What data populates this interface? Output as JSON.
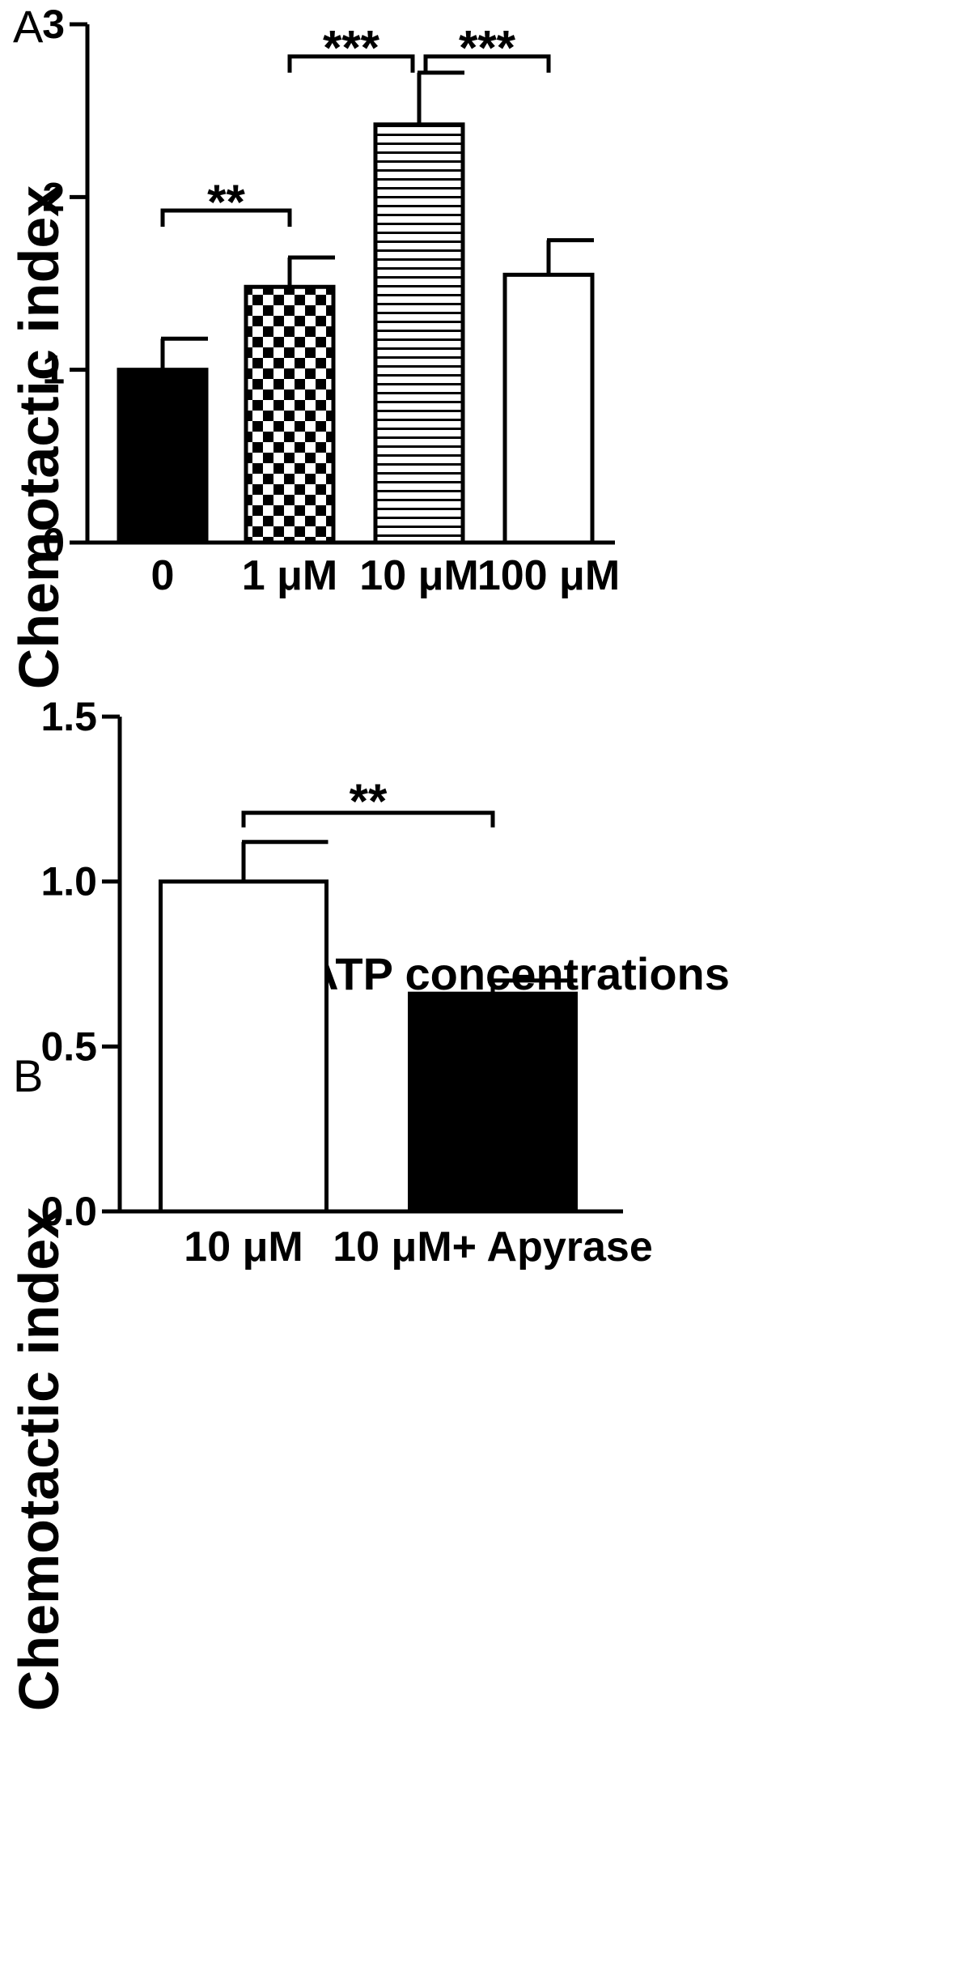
{
  "chart_data": [
    {
      "panel": "A",
      "type": "bar",
      "title": "",
      "xlabel": "ATP concentrations",
      "ylabel": "Chemotactic index",
      "categories": [
        "0",
        "1 μM",
        "10 μM",
        "100 μM"
      ],
      "values": [
        1.0,
        1.48,
        2.42,
        1.55
      ],
      "errors": [
        0.18,
        0.17,
        0.3,
        0.2
      ],
      "fills": [
        "solid",
        "checker",
        "hstripes",
        "open"
      ],
      "ylim": [
        0,
        3
      ],
      "yticks": [
        "0",
        "1",
        "2",
        "3"
      ],
      "grid": false,
      "significance": [
        {
          "from": 0,
          "to": 1,
          "label": "**"
        },
        {
          "from": 1,
          "to": 2,
          "label": "***"
        },
        {
          "from": 2,
          "to": 3,
          "label": "***"
        }
      ]
    },
    {
      "panel": "B",
      "type": "bar",
      "title": "",
      "xlabel": "",
      "ylabel": "Chemotactic index",
      "categories": [
        "10 μM",
        "10 μM+ Apyrase"
      ],
      "values": [
        1.0,
        0.66
      ],
      "errors": [
        0.12,
        0.04
      ],
      "fills": [
        "open",
        "solid"
      ],
      "ylim": [
        0,
        1.5
      ],
      "yticks": [
        "0.0",
        "0.5",
        "1.0",
        "1.5"
      ],
      "grid": false,
      "significance": [
        {
          "from": 0,
          "to": 1,
          "label": "**"
        }
      ]
    }
  ]
}
